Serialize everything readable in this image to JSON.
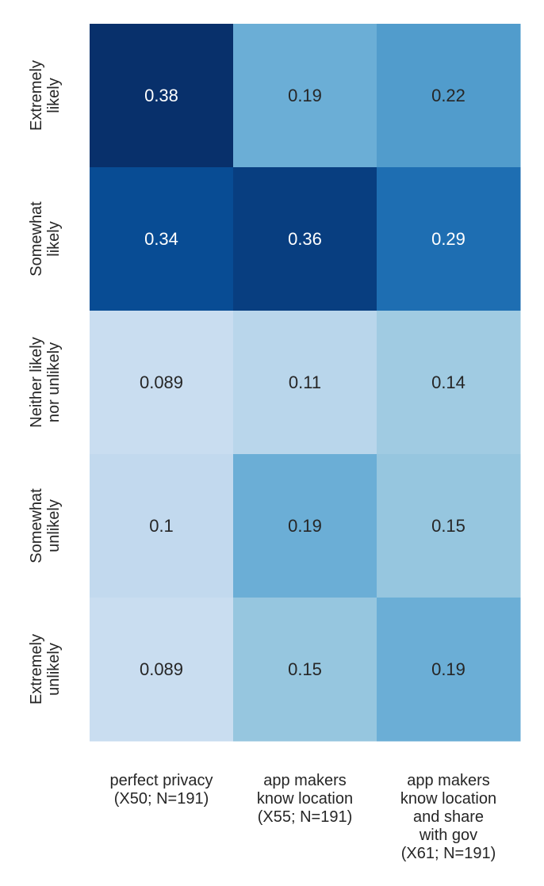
{
  "chart_data": {
    "type": "heatmap",
    "title": "",
    "xlabel": "",
    "ylabel": "",
    "colormap": "Blues",
    "color_range": [
      0.0,
      0.38
    ],
    "columns": [
      [
        "perfect privacy",
        "(X50; N=191)"
      ],
      [
        "app makers",
        "know location",
        "(X55; N=191)"
      ],
      [
        "app makers",
        "know location",
        "and share",
        "with gov",
        "(X61; N=191)"
      ]
    ],
    "rows": [
      [
        "Extremely",
        "likely"
      ],
      [
        "Somewhat",
        "likely"
      ],
      [
        "Neither likely",
        "nor unlikely"
      ],
      [
        "Somewhat",
        "unlikely"
      ],
      [
        "Extremely",
        "unlikely"
      ]
    ],
    "values": [
      [
        0.38,
        0.19,
        0.22
      ],
      [
        0.34,
        0.36,
        0.29
      ],
      [
        0.089,
        0.11,
        0.14
      ],
      [
        0.1,
        0.19,
        0.15
      ],
      [
        0.089,
        0.15,
        0.19
      ]
    ],
    "value_labels": [
      [
        "0.38",
        "0.19",
        "0.22"
      ],
      [
        "0.34",
        "0.36",
        "0.29"
      ],
      [
        "0.089",
        "0.11",
        "0.14"
      ],
      [
        "0.1",
        "0.19",
        "0.15"
      ],
      [
        "0.089",
        "0.15",
        "0.19"
      ]
    ],
    "grid": false,
    "colorbar": false
  }
}
